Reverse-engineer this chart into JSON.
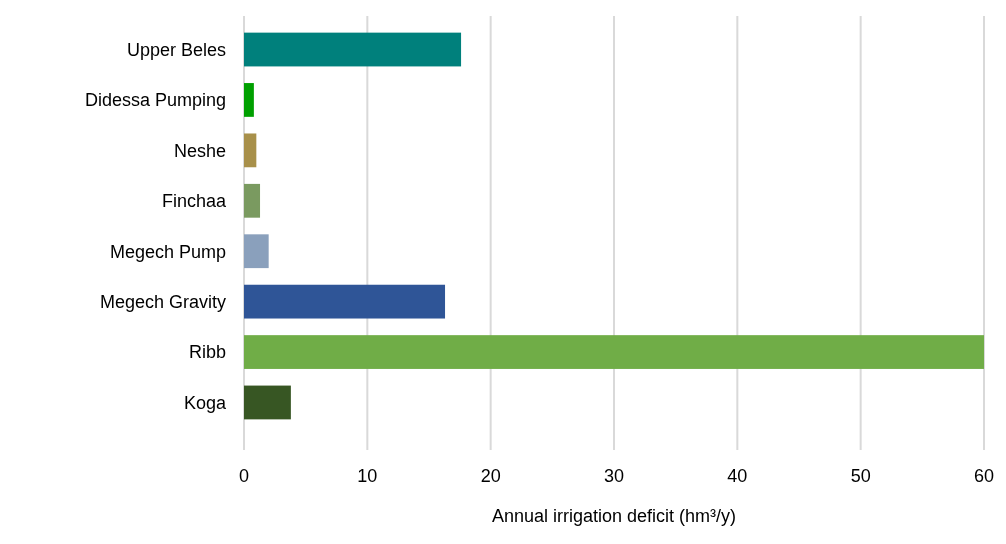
{
  "chart_data": {
    "type": "bar",
    "orientation": "horizontal",
    "categories": [
      "Upper Beles",
      "Didessa Pumping",
      "Neshe",
      "Finchaa",
      "Megech Pump",
      "Megech Gravity",
      "Ribb",
      "Koga"
    ],
    "values": [
      17.6,
      0.8,
      1.0,
      1.3,
      2.0,
      16.3,
      60,
      3.8
    ],
    "colors": [
      "#00807c",
      "#00a000",
      "#a8904a",
      "#7a9a60",
      "#8aa0bc",
      "#2f5597",
      "#70ad47",
      "#375623"
    ],
    "xlabel": "Annual irrigation deficit (hm³/y)",
    "xlim": [
      0,
      60
    ],
    "xticks": [
      0,
      10,
      20,
      30,
      40,
      50,
      60
    ],
    "grid": "x"
  }
}
